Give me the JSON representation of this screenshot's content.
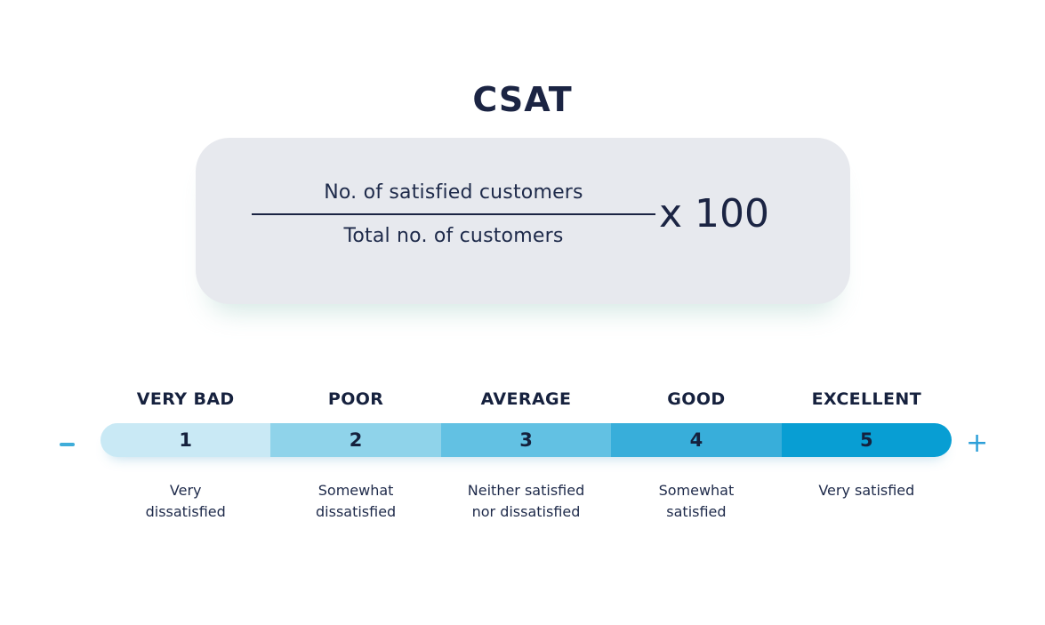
{
  "title": "CSAT",
  "formula": {
    "numerator": "No. of satisfied customers",
    "denominator": "Total no. of customers",
    "multiplier": "x 100"
  },
  "scale": {
    "minus_symbol": "minus",
    "plus_symbol": "+",
    "levels": [
      {
        "header": "VERY BAD",
        "value": "1",
        "description": "Very\ndissatisfied",
        "color": "#c9e9f5"
      },
      {
        "header": "POOR",
        "value": "2",
        "description": "Somewhat\ndissatisfied",
        "color": "#8fd3ea"
      },
      {
        "header": "AVERAGE",
        "value": "3",
        "description": "Neither satisfied\nnor dissatisfied",
        "color": "#62c1e3"
      },
      {
        "header": "GOOD",
        "value": "4",
        "description": "Somewhat\nsatisfied",
        "color": "#38aeda"
      },
      {
        "header": "EXCELLENT",
        "value": "5",
        "description": "Very satisfied",
        "color": "#089ed3"
      }
    ]
  },
  "colors": {
    "text_navy": "#1b2443",
    "formula_card_bg": "#e7e9ee",
    "accent_blue": "#2d9fd8",
    "background": "#ffffff"
  }
}
